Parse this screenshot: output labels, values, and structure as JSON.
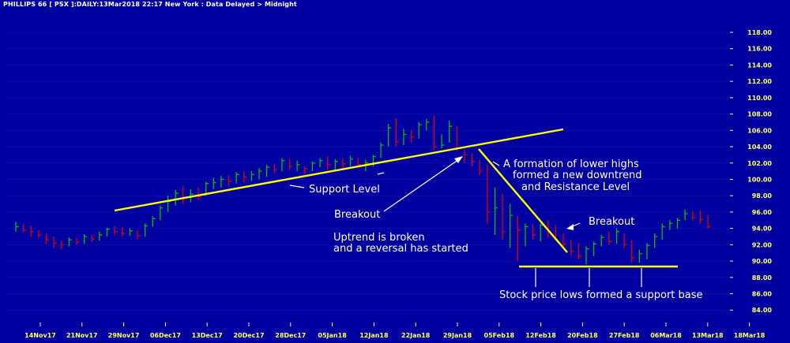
{
  "header": "PHILLIPS 66 [ PSX ]:DAILY:13Mar2018 22:17 New York : Data Delayed > Midnight",
  "colors": {
    "background": "#0000a0",
    "up_bar": "#00c000",
    "down_bar": "#e00000",
    "trendline": "#ffff00",
    "annotation": "#ffffff",
    "axis_text": "#ffff66"
  },
  "chart_data": {
    "type": "ohlc",
    "ylim": [
      83,
      119
    ],
    "yticks": [
      "84.00",
      "86.00",
      "88.00",
      "90.00",
      "92.00",
      "94.00",
      "96.00",
      "98.00",
      "100.00",
      "102.00",
      "104.00",
      "106.00",
      "108.00",
      "110.00",
      "112.00",
      "114.00",
      "116.00",
      "118.00"
    ],
    "xticks": [
      "14Nov17",
      "21Nov17",
      "29Nov17",
      "06Dec17",
      "13Dec17",
      "20Dec17",
      "28Dec17",
      "05Jan18",
      "12Jan18",
      "22Jan18",
      "29Jan18",
      "05Feb18",
      "12Feb18",
      "20Feb18",
      "27Feb18",
      "06Mar18",
      "13Mar18",
      "18Mar18"
    ],
    "bars": [
      [
        94.8,
        93.6,
        94.2
      ],
      [
        94.5,
        93.5,
        93.8
      ],
      [
        94.3,
        93.0,
        93.6
      ],
      [
        93.8,
        92.9,
        93.2
      ],
      [
        93.4,
        92.1,
        92.6
      ],
      [
        93.0,
        91.6,
        92.2
      ],
      [
        92.5,
        91.4,
        92.0
      ],
      [
        92.9,
        91.8,
        92.6
      ],
      [
        92.8,
        92.0,
        92.3
      ],
      [
        93.3,
        92.1,
        93.0
      ],
      [
        93.2,
        92.3,
        92.7
      ],
      [
        93.6,
        92.5,
        93.2
      ],
      [
        94.1,
        93.0,
        93.9
      ],
      [
        94.3,
        93.2,
        93.6
      ],
      [
        94.2,
        93.0,
        93.4
      ],
      [
        94.0,
        93.1,
        93.7
      ],
      [
        93.8,
        92.7,
        93.1
      ],
      [
        94.6,
        93.0,
        94.3
      ],
      [
        95.5,
        94.2,
        95.2
      ],
      [
        96.8,
        95.0,
        96.5
      ],
      [
        98.0,
        96.0,
        97.3
      ],
      [
        98.7,
        96.8,
        98.3
      ],
      [
        99.2,
        97.0,
        97.8
      ],
      [
        98.8,
        97.2,
        98.2
      ],
      [
        99.0,
        97.5,
        97.9
      ],
      [
        99.7,
        98.0,
        99.5
      ],
      [
        100.2,
        98.8,
        99.6
      ],
      [
        100.4,
        99.0,
        100.0
      ],
      [
        100.5,
        99.2,
        99.8
      ],
      [
        100.9,
        99.5,
        100.6
      ],
      [
        101.0,
        99.6,
        100.3
      ],
      [
        101.0,
        99.8,
        100.6
      ],
      [
        101.4,
        100.0,
        101.0
      ],
      [
        101.8,
        100.3,
        101.5
      ],
      [
        101.9,
        100.8,
        101.2
      ],
      [
        102.6,
        101.0,
        102.3
      ],
      [
        102.5,
        101.2,
        101.6
      ],
      [
        102.3,
        101.0,
        101.8
      ],
      [
        101.6,
        100.6,
        101.3
      ],
      [
        102.2,
        101.0,
        102.0
      ],
      [
        102.6,
        101.5,
        102.3
      ],
      [
        102.8,
        101.2,
        101.8
      ],
      [
        102.5,
        101.0,
        102.2
      ],
      [
        102.6,
        101.3,
        101.9
      ],
      [
        102.9,
        101.6,
        102.5
      ],
      [
        102.7,
        101.5,
        101.8
      ],
      [
        102.4,
        101.0,
        102.0
      ],
      [
        103.0,
        101.6,
        102.8
      ],
      [
        104.5,
        102.6,
        104.2
      ],
      [
        106.8,
        104.0,
        106.3
      ],
      [
        107.5,
        104.0,
        104.6
      ],
      [
        106.2,
        104.2,
        105.5
      ],
      [
        106.0,
        104.5,
        105.2
      ],
      [
        107.0,
        105.0,
        106.7
      ],
      [
        107.4,
        106.0,
        107.0
      ],
      [
        107.8,
        103.6,
        104.0
      ],
      [
        105.5,
        103.8,
        104.2
      ],
      [
        107.2,
        104.5,
        106.5
      ],
      [
        106.5,
        103.5,
        103.8
      ],
      [
        103.6,
        102.0,
        103.0
      ],
      [
        103.2,
        101.6,
        102.2
      ],
      [
        102.4,
        100.5,
        101.0
      ],
      [
        101.8,
        94.6,
        96.0
      ],
      [
        99.0,
        93.2,
        96.5
      ],
      [
        98.2,
        92.6,
        93.6
      ],
      [
        97.0,
        91.6,
        95.6
      ],
      [
        95.5,
        90.0,
        93.8
      ],
      [
        94.6,
        91.8,
        94.2
      ],
      [
        94.5,
        92.6,
        93.2
      ],
      [
        94.6,
        92.4,
        94.4
      ],
      [
        95.0,
        92.8,
        93.5
      ],
      [
        94.4,
        92.5,
        92.6
      ],
      [
        93.4,
        91.6,
        92.1
      ],
      [
        92.6,
        90.6,
        91.2
      ],
      [
        92.2,
        90.2,
        90.6
      ],
      [
        91.8,
        89.6,
        91.5
      ],
      [
        92.4,
        90.6,
        92.1
      ],
      [
        93.2,
        91.8,
        92.9
      ],
      [
        93.6,
        92.0,
        92.4
      ],
      [
        94.0,
        92.1,
        93.6
      ],
      [
        93.4,
        91.6,
        92.0
      ],
      [
        92.6,
        89.8,
        90.4
      ],
      [
        91.4,
        89.8,
        90.9
      ],
      [
        92.2,
        90.2,
        91.9
      ],
      [
        93.4,
        91.6,
        93.0
      ],
      [
        94.6,
        92.6,
        94.2
      ],
      [
        95.0,
        93.8,
        94.6
      ],
      [
        95.3,
        94.0,
        95.0
      ],
      [
        96.3,
        95.0,
        95.8
      ],
      [
        96.1,
        95.0,
        95.3
      ],
      [
        96.2,
        94.6,
        95.1
      ],
      [
        95.6,
        94.0,
        94.2
      ]
    ],
    "annotations": [
      {
        "text": "Support Level"
      },
      {
        "text": "Breakout"
      },
      {
        "text": "Uptrend is broken"
      },
      {
        "text": "and a reversal has started"
      },
      {
        "text": "A formation of lower highs"
      },
      {
        "text": "formed a new downtrend"
      },
      {
        "text": "and Resistance Level"
      },
      {
        "text": "Breakout"
      },
      {
        "text": "Stock price lows formed a support base"
      }
    ]
  }
}
